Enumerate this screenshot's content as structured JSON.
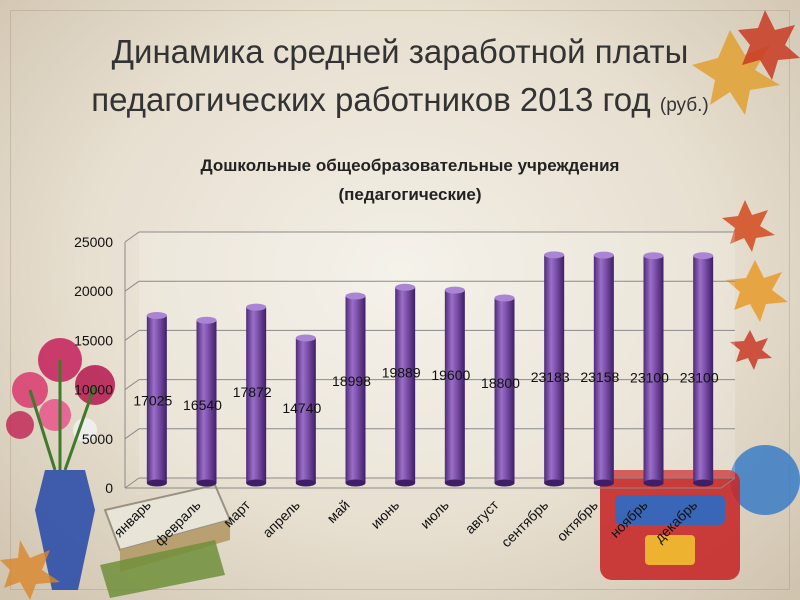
{
  "title": {
    "line1": "Динамика средней заработной платы",
    "line2": "педагогических работников 2013 год",
    "unit": "(руб.)"
  },
  "chart_data": {
    "type": "bar",
    "title_line1": "Дошкольные общеобразовательные учреждения",
    "title_line2": "(педагогические)",
    "categories": [
      "январь",
      "февраль",
      "март",
      "апрель",
      "май",
      "июнь",
      "июль",
      "август",
      "сентябрь",
      "октябрь",
      "ноябрь",
      "декабрь"
    ],
    "values": [
      17025,
      16540,
      17872,
      14740,
      18998,
      19889,
      19600,
      18800,
      23183,
      23158,
      23100,
      23100
    ],
    "ylim": [
      0,
      25000
    ],
    "yticks": [
      0,
      5000,
      10000,
      15000,
      20000,
      25000
    ],
    "grid": true,
    "bar_color": "#7b4fa8"
  }
}
